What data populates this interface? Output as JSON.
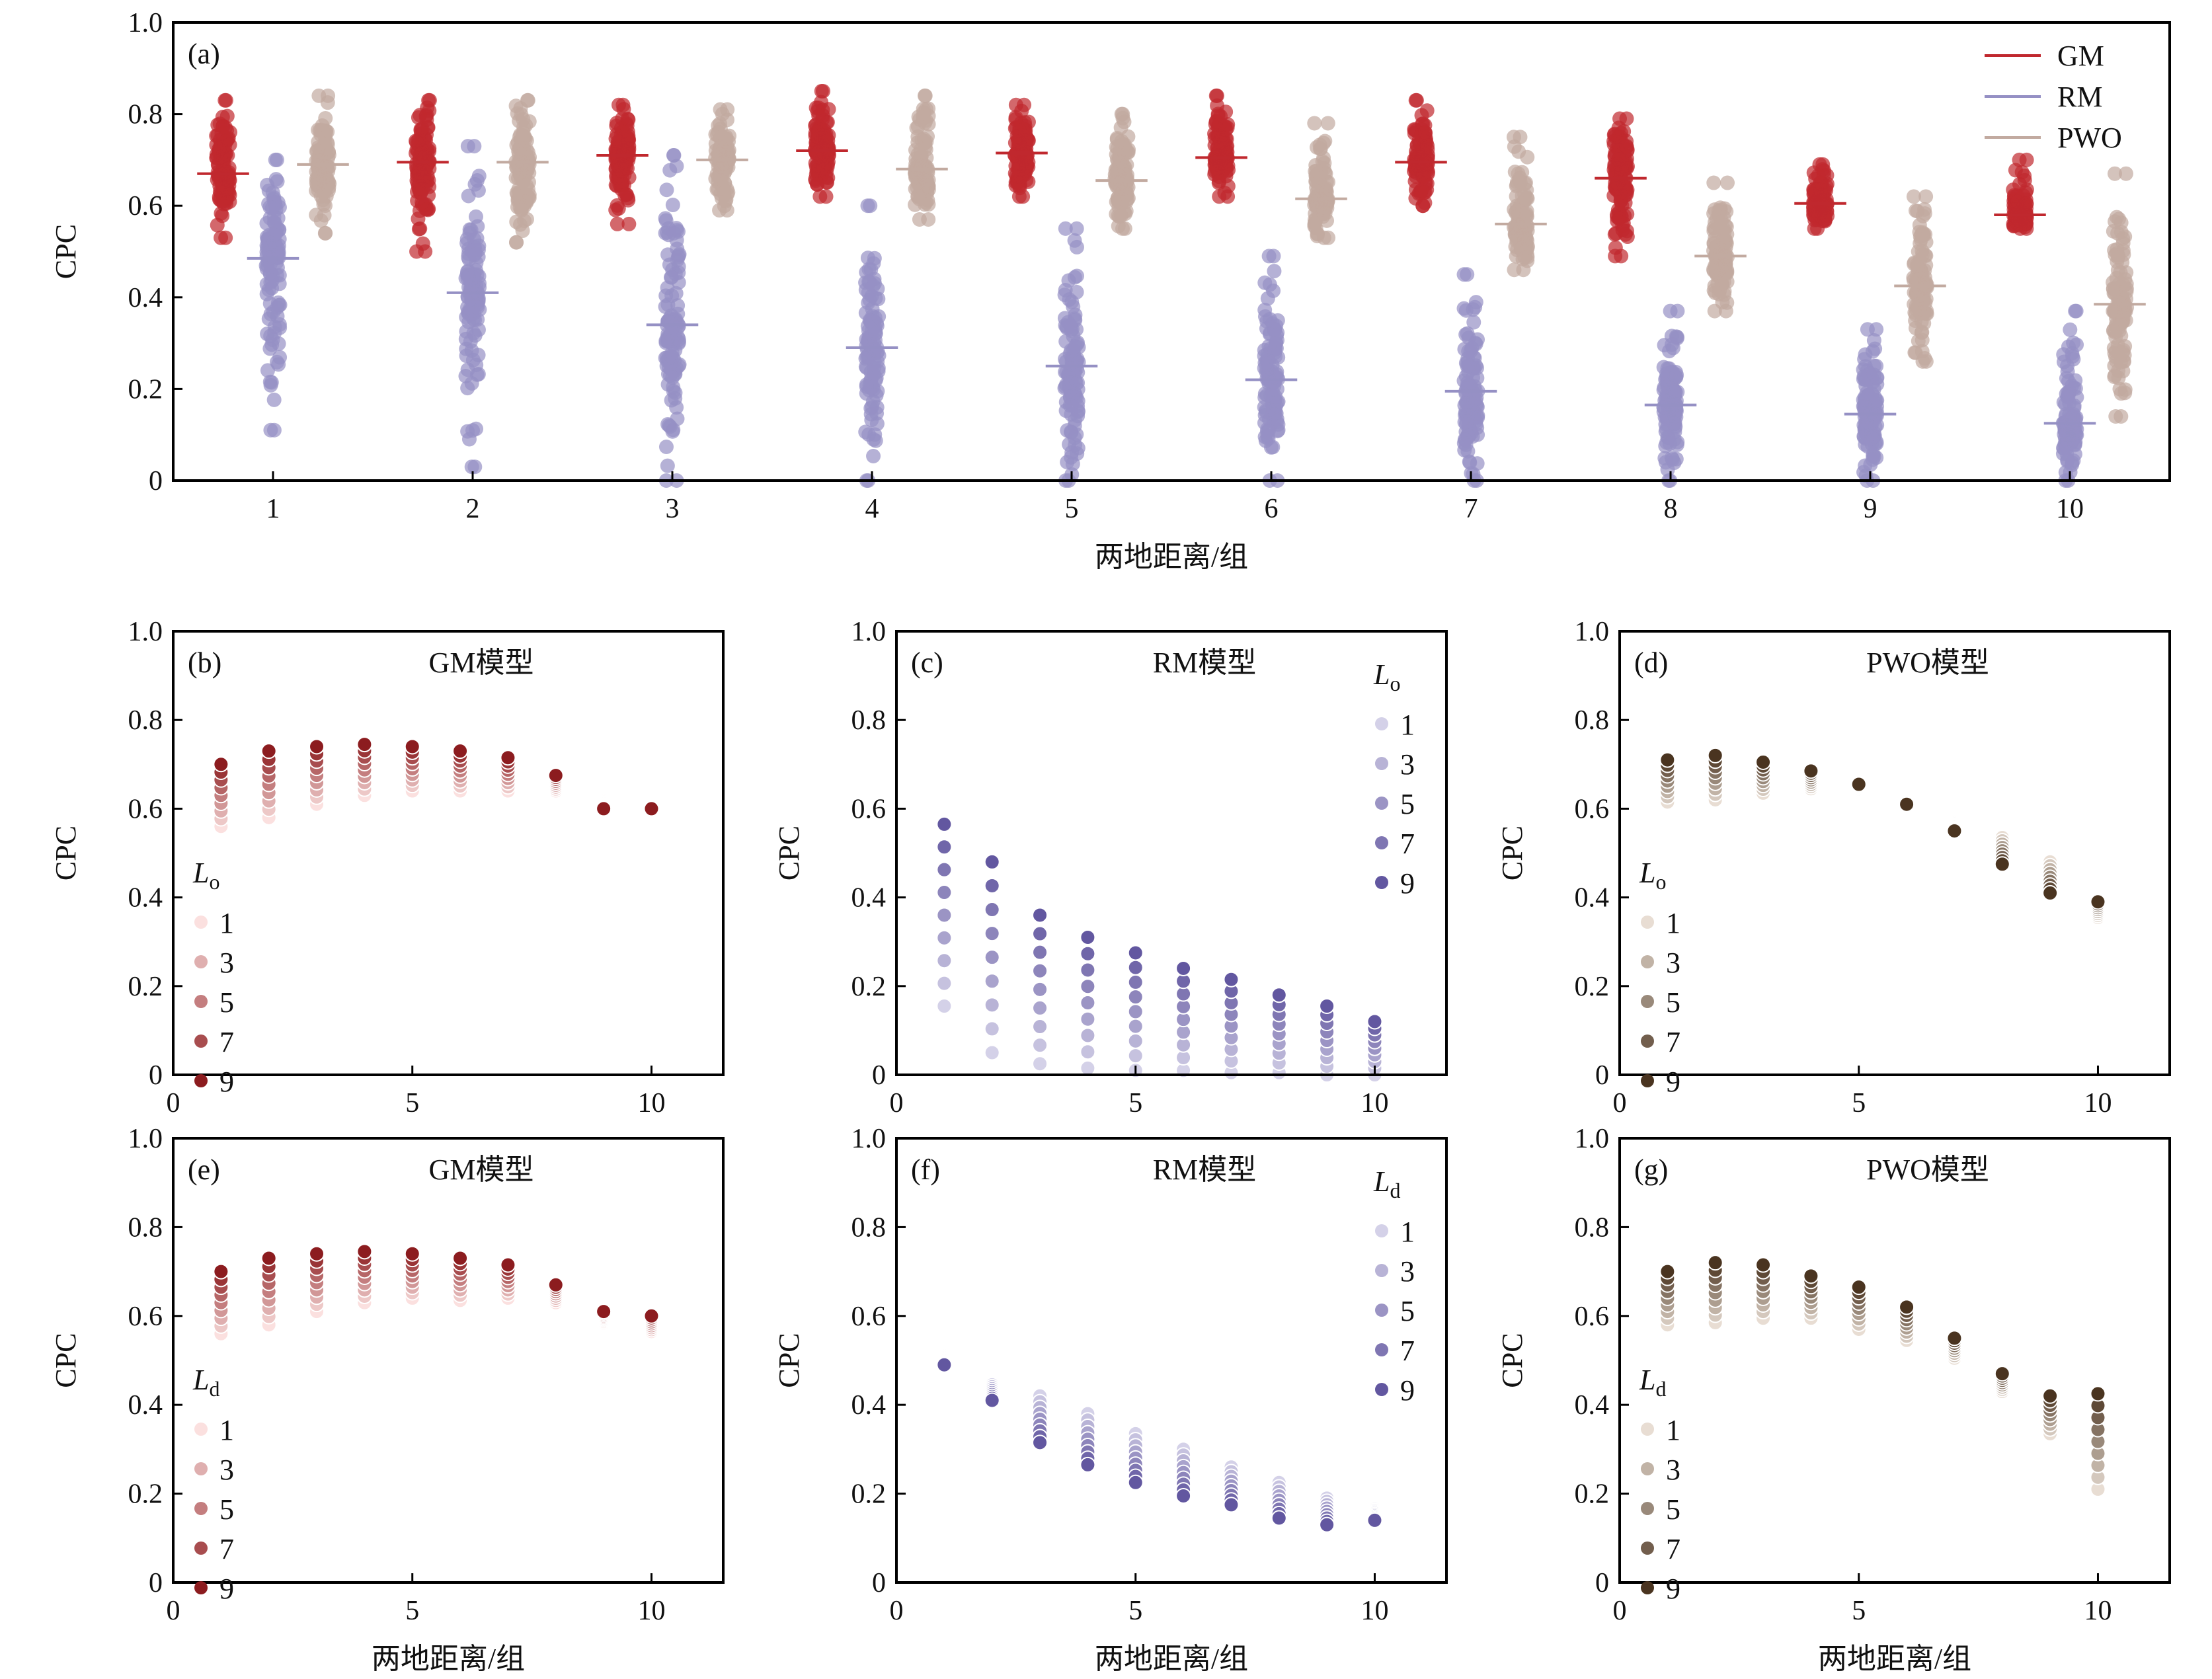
{
  "chart_data": [
    {
      "id": "a",
      "type": "scatter",
      "label": "(a)",
      "xlabel": "两地距离/组",
      "ylabel": "CPC",
      "xlim": [
        0.5,
        10.5
      ],
      "ylim": [
        0,
        1
      ],
      "xticks": [
        "1",
        "2",
        "3",
        "4",
        "5",
        "6",
        "7",
        "8",
        "9",
        "10"
      ],
      "yticks": [
        "0",
        "0.2",
        "0.4",
        "0.6",
        "0.8",
        "1.0"
      ],
      "legend": {
        "placement": "top-right",
        "entries": [
          "GM",
          "RM",
          "PWO"
        ]
      },
      "colors": {
        "GM": "#c0282e",
        "RM": "#9590c4",
        "PWO": "#c2aaa0"
      },
      "series": [
        {
          "name": "GM",
          "offset": -0.25,
          "mean": [
            0.67,
            0.695,
            0.71,
            0.72,
            0.715,
            0.705,
            0.695,
            0.66,
            0.605,
            0.58
          ],
          "min": [
            0.53,
            0.5,
            0.56,
            0.62,
            0.62,
            0.62,
            0.6,
            0.49,
            0.55,
            0.55
          ],
          "max": [
            0.83,
            0.83,
            0.82,
            0.85,
            0.82,
            0.84,
            0.83,
            0.79,
            0.69,
            0.7
          ]
        },
        {
          "name": "RM",
          "offset": 0,
          "mean": [
            0.485,
            0.41,
            0.34,
            0.29,
            0.25,
            0.22,
            0.195,
            0.165,
            0.145,
            0.125
          ],
          "min": [
            0.11,
            0.03,
            0.0,
            0.0,
            0.0,
            0.0,
            0.0,
            0.0,
            0.0,
            0.0
          ],
          "max": [
            0.7,
            0.73,
            0.71,
            0.6,
            0.55,
            0.49,
            0.45,
            0.37,
            0.33,
            0.37
          ]
        },
        {
          "name": "PWO",
          "offset": 0.25,
          "mean": [
            0.69,
            0.695,
            0.7,
            0.68,
            0.655,
            0.615,
            0.56,
            0.49,
            0.425,
            0.385
          ],
          "min": [
            0.54,
            0.52,
            0.59,
            0.57,
            0.55,
            0.53,
            0.46,
            0.37,
            0.26,
            0.14
          ],
          "max": [
            0.84,
            0.83,
            0.81,
            0.84,
            0.8,
            0.78,
            0.75,
            0.65,
            0.62,
            0.67
          ]
        }
      ]
    },
    {
      "id": "b",
      "type": "scatter",
      "label": "(b)",
      "title": "GM模型",
      "ylabel": "CPC",
      "xlabel": "",
      "legend_title": "L",
      "legend_sub": "o",
      "legend_pos": "bottom-left",
      "xlim": [
        0,
        11.5
      ],
      "ylim": [
        0,
        1
      ],
      "xticks": [
        "0",
        "5",
        "10"
      ],
      "yticks": [
        "0",
        "0.2",
        "0.4",
        "0.6",
        "0.8",
        "1.0"
      ],
      "levels": [
        "1",
        "2",
        "3",
        "4",
        "5",
        "6",
        "7",
        "8",
        "9"
      ],
      "legend_levels": [
        "1",
        "3",
        "5",
        "7",
        "9"
      ],
      "color_low": "#fbe0df",
      "color_high": "#8c1c1f",
      "x": [
        1,
        2,
        3,
        4,
        5,
        6,
        7,
        8,
        9,
        10
      ],
      "level1": [
        0.56,
        0.58,
        0.61,
        0.63,
        0.64,
        0.64,
        0.64,
        0.64,
        0.62,
        0.59
      ],
      "level9": [
        0.7,
        0.73,
        0.74,
        0.745,
        0.74,
        0.73,
        0.715,
        0.675,
        0.6,
        0.6
      ]
    },
    {
      "id": "c",
      "type": "scatter",
      "label": "(c)",
      "title": "RM模型",
      "ylabel": "CPC",
      "xlabel": "",
      "legend_title": "L",
      "legend_sub": "o",
      "legend_pos": "top-right",
      "xlim": [
        0,
        11.5
      ],
      "ylim": [
        0,
        1
      ],
      "xticks": [
        "0",
        "5",
        "10"
      ],
      "yticks": [
        "0",
        "0.2",
        "0.4",
        "0.6",
        "0.8",
        "1.0"
      ],
      "levels": [
        "1",
        "2",
        "3",
        "4",
        "5",
        "6",
        "7",
        "8",
        "9"
      ],
      "legend_levels": [
        "1",
        "3",
        "5",
        "7",
        "9"
      ],
      "color_low": "#d4d1e8",
      "color_high": "#6257a0",
      "x": [
        1,
        2,
        3,
        4,
        5,
        6,
        7,
        8,
        9,
        10
      ],
      "level1": [
        0.155,
        0.05,
        0.025,
        0.015,
        0.01,
        0.01,
        0.005,
        0.005,
        0.0,
        0.0
      ],
      "level9": [
        0.565,
        0.48,
        0.36,
        0.31,
        0.275,
        0.24,
        0.215,
        0.18,
        0.155,
        0.12
      ]
    },
    {
      "id": "d",
      "type": "scatter",
      "label": "(d)",
      "title": "PWO模型",
      "ylabel": "CPC",
      "xlabel": "",
      "legend_title": "L",
      "legend_sub": "o",
      "legend_pos": "bottom-left",
      "xlim": [
        0,
        11.5
      ],
      "ylim": [
        0,
        1
      ],
      "xticks": [
        "0",
        "5",
        "10"
      ],
      "yticks": [
        "0",
        "0.2",
        "0.4",
        "0.6",
        "0.8",
        "1.0"
      ],
      "levels": [
        "1",
        "2",
        "3",
        "4",
        "5",
        "6",
        "7",
        "8",
        "9"
      ],
      "legend_levels": [
        "1",
        "3",
        "5",
        "7",
        "9"
      ],
      "color_low": "#e8ddd3",
      "color_high": "#4a3420",
      "x": [
        1,
        2,
        3,
        4,
        5,
        6,
        7,
        8,
        9,
        10
      ],
      "level1": [
        0.615,
        0.62,
        0.635,
        0.645,
        0.635,
        0.595,
        0.57,
        0.535,
        0.48,
        0.355
      ],
      "level9": [
        0.71,
        0.72,
        0.705,
        0.685,
        0.655,
        0.61,
        0.55,
        0.475,
        0.41,
        0.39
      ]
    },
    {
      "id": "e",
      "type": "scatter",
      "label": "(e)",
      "title": "GM模型",
      "ylabel": "CPC",
      "xlabel": "两地距离/组",
      "legend_title": "L",
      "legend_sub": "d",
      "legend_pos": "bottom-left",
      "xlim": [
        0,
        11.5
      ],
      "ylim": [
        0,
        1
      ],
      "xticks": [
        "0",
        "5",
        "10"
      ],
      "yticks": [
        "0",
        "0.2",
        "0.4",
        "0.6",
        "0.8",
        "1.0"
      ],
      "levels": [
        "1",
        "2",
        "3",
        "4",
        "5",
        "6",
        "7",
        "8",
        "9"
      ],
      "legend_levels": [
        "1",
        "3",
        "5",
        "7",
        "9"
      ],
      "color_low": "#fbe0df",
      "color_high": "#8c1c1f",
      "x": [
        1,
        2,
        3,
        4,
        5,
        6,
        7,
        8,
        9,
        10
      ],
      "level1": [
        0.56,
        0.58,
        0.61,
        0.63,
        0.64,
        0.635,
        0.64,
        0.63,
        0.585,
        0.565
      ],
      "level9": [
        0.7,
        0.73,
        0.74,
        0.745,
        0.74,
        0.73,
        0.715,
        0.67,
        0.61,
        0.6
      ]
    },
    {
      "id": "f",
      "type": "scatter",
      "label": "(f)",
      "title": "RM模型",
      "ylabel": "CPC",
      "xlabel": "两地距离/组",
      "legend_title": "L",
      "legend_sub": "d",
      "legend_pos": "top-right",
      "xlim": [
        0,
        11.5
      ],
      "ylim": [
        0,
        1
      ],
      "xticks": [
        "0",
        "5",
        "10"
      ],
      "yticks": [
        "0",
        "0.2",
        "0.4",
        "0.6",
        "0.8",
        "1.0"
      ],
      "levels": [
        "1",
        "2",
        "3",
        "4",
        "5",
        "6",
        "7",
        "8",
        "9"
      ],
      "legend_levels": [
        "1",
        "3",
        "5",
        "7",
        "9"
      ],
      "color_low": "#d4d1e8",
      "color_high": "#6257a0",
      "x": [
        1,
        2,
        3,
        4,
        5,
        6,
        7,
        8,
        9,
        10
      ],
      "level1": [
        0.51,
        0.445,
        0.42,
        0.38,
        0.335,
        0.3,
        0.26,
        0.225,
        0.19,
        0.165
      ],
      "level9": [
        0.49,
        0.41,
        0.315,
        0.265,
        0.225,
        0.195,
        0.175,
        0.145,
        0.13,
        0.14
      ]
    },
    {
      "id": "g",
      "type": "scatter",
      "label": "(g)",
      "title": "PWO模型",
      "ylabel": "CPC",
      "xlabel": "两地距离/组",
      "legend_title": "L",
      "legend_sub": "d",
      "legend_pos": "bottom-left",
      "xlim": [
        0,
        11.5
      ],
      "ylim": [
        0,
        1
      ],
      "xticks": [
        "0",
        "5",
        "10"
      ],
      "yticks": [
        "0",
        "0.2",
        "0.4",
        "0.6",
        "0.8",
        "1.0"
      ],
      "levels": [
        "1",
        "2",
        "3",
        "4",
        "5",
        "6",
        "7",
        "8",
        "9"
      ],
      "legend_levels": [
        "1",
        "3",
        "5",
        "7",
        "9"
      ],
      "color_low": "#e8ddd3",
      "color_high": "#4a3420",
      "x": [
        1,
        2,
        3,
        4,
        5,
        6,
        7,
        8,
        9,
        10
      ],
      "level1": [
        0.58,
        0.585,
        0.595,
        0.595,
        0.57,
        0.545,
        0.505,
        0.43,
        0.335,
        0.21
      ],
      "level9": [
        0.7,
        0.72,
        0.715,
        0.69,
        0.665,
        0.62,
        0.55,
        0.47,
        0.42,
        0.425
      ]
    }
  ]
}
